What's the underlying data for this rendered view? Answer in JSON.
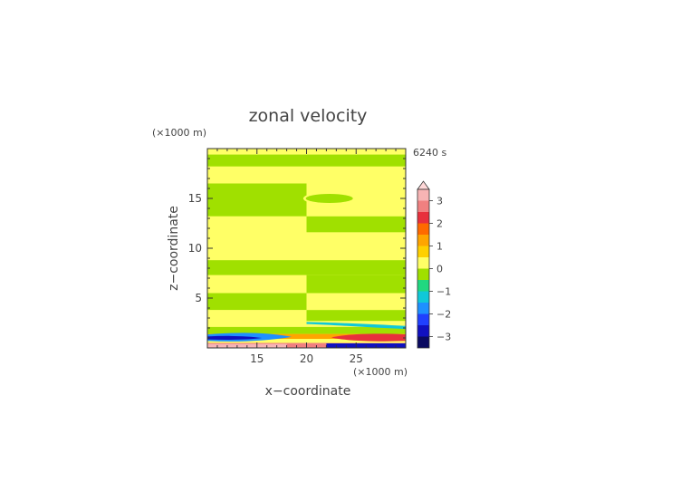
{
  "chart_data": {
    "type": "heatmap",
    "title": "zonal velocity",
    "time_label": "6240 s",
    "xlabel": "x−coordinate",
    "ylabel": "z−coordinate",
    "x_unit": "(×1000 m)",
    "y_unit": "(×1000 m)",
    "xlim": [
      10,
      30
    ],
    "ylim": [
      0,
      20
    ],
    "x_ticks": [
      "15",
      "20",
      "25"
    ],
    "y_ticks": [
      "5",
      "10",
      "15"
    ],
    "colorbar": {
      "labels": [
        "3",
        "2",
        "1",
        "0",
        "−1",
        "−2",
        "−3"
      ],
      "level_colors": [
        "#f7b4b4",
        "#f08080",
        "#e8303c",
        "#ff6a00",
        "#ffa500",
        "#ffd000",
        "#ffff66",
        "#a0e000",
        "#20d880",
        "#10c8d8",
        "#1e90ff",
        "#2040ff",
        "#1010c0",
        "#0a0a60"
      ],
      "extend_top_color": "#ffd8d8"
    },
    "bands": [
      {
        "z": [
          19.4,
          20.0
        ],
        "left": "#ffff66",
        "right": "#ffff66"
      },
      {
        "z": [
          18.2,
          19.4
        ],
        "left": "#a0e000",
        "right": "#a0e000"
      },
      {
        "z": [
          16.5,
          18.2
        ],
        "left": "#ffff66",
        "right": "#ffff66"
      },
      {
        "z": [
          13.2,
          16.5
        ],
        "left": "#a0e000",
        "right": "#ffff66"
      },
      {
        "z": [
          11.6,
          13.2
        ],
        "left": "#ffff66",
        "right": "#a0e000"
      },
      {
        "z": [
          8.8,
          11.6
        ],
        "left": "#ffff66",
        "right": "#ffff66"
      },
      {
        "z": [
          7.3,
          8.8
        ],
        "left": "#a0e000",
        "right": "#a0e000"
      },
      {
        "z": [
          5.5,
          7.3
        ],
        "left": "#ffff66",
        "right": "#a0e000"
      },
      {
        "z": [
          3.8,
          5.5
        ],
        "left": "#a0e000",
        "right": "#ffff66"
      },
      {
        "z": [
          2.7,
          3.8
        ],
        "left": "#ffff66",
        "right": "#a0e000"
      }
    ]
  }
}
